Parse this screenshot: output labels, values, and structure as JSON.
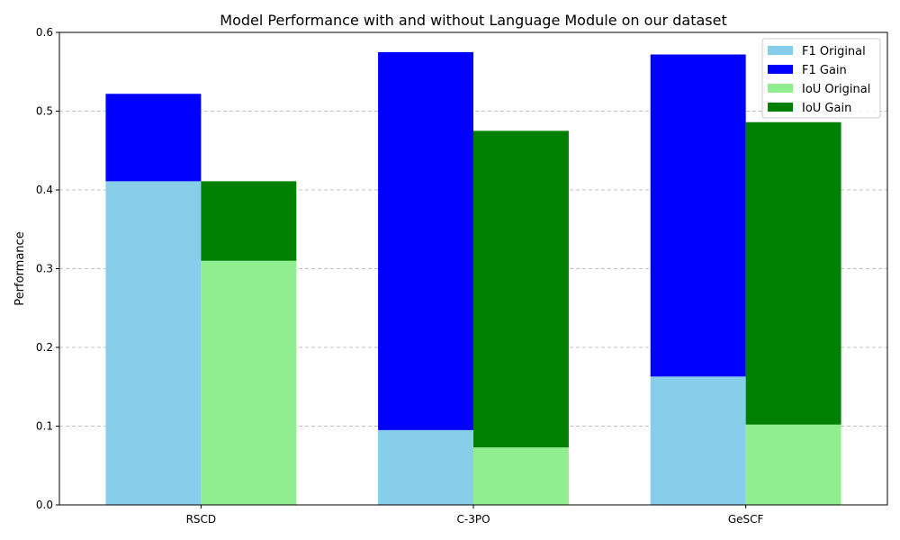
{
  "chart_data": {
    "type": "bar",
    "title": "Model Performance with and without Language Module on our dataset",
    "xlabel": "",
    "ylabel": "Performance",
    "categories": [
      "RSCD",
      "C-3PO",
      "GeSCF"
    ],
    "ylim": [
      0,
      0.6
    ],
    "yticks": [
      0.0,
      0.1,
      0.2,
      0.3,
      0.4,
      0.5,
      0.6
    ],
    "ytick_labels": [
      "0.0",
      "0.1",
      "0.2",
      "0.3",
      "0.4",
      "0.5",
      "0.6"
    ],
    "grid": "y-dashed",
    "legend_position": "top-right",
    "series": [
      {
        "name": "F1 Original",
        "group": "F1",
        "stack_base": "",
        "color": "#87CEEB",
        "values": [
          0.411,
          0.095,
          0.163
        ]
      },
      {
        "name": "F1 Gain",
        "group": "F1",
        "stack_base": "F1 Original",
        "color": "#0000FF",
        "values": [
          0.111,
          0.48,
          0.409
        ]
      },
      {
        "name": "IoU Original",
        "group": "IoU",
        "stack_base": "",
        "color": "#90EE90",
        "values": [
          0.31,
          0.073,
          0.102
        ]
      },
      {
        "name": "IoU Gain",
        "group": "IoU",
        "stack_base": "IoU Original",
        "color": "#008000",
        "values": [
          0.101,
          0.402,
          0.384
        ]
      }
    ]
  }
}
